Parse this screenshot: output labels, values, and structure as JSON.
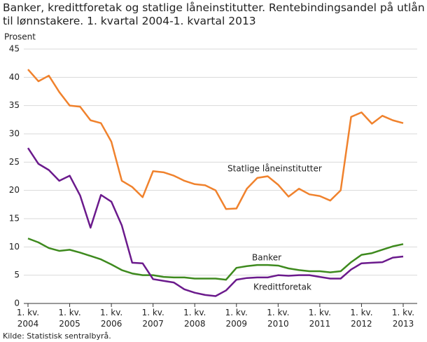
{
  "chart_data": {
    "type": "line",
    "title": "Banker, kredittforetak og statlige låneinstitutter. Rentebindingsandel på utlån til lønnstakere. 1. kvartal 2004-1. kvartal 2013",
    "y_label": "Prosent",
    "source": "Kilde: Statistisk sentralbyrå.",
    "categories": [
      "1. kv. 2004",
      null,
      null,
      null,
      "1. kv. 2005",
      null,
      null,
      null,
      "1. kv. 2006",
      null,
      null,
      null,
      "1. kv. 2007",
      null,
      null,
      null,
      "1. kv. 2008",
      null,
      null,
      null,
      "1. kv. 2009",
      null,
      null,
      null,
      "1. kv. 2010",
      null,
      null,
      null,
      "1. kv. 2011",
      null,
      null,
      null,
      "1. kv. 2012",
      null,
      null,
      null,
      "1. kv. 2013"
    ],
    "series": [
      {
        "name": "Statlige låneinstitutter",
        "color": "#f0822d",
        "values": [
          41.4,
          39.3,
          40.3,
          37.4,
          35.0,
          34.8,
          32.4,
          31.9,
          28.6,
          21.7,
          20.6,
          18.8,
          23.4,
          23.2,
          22.6,
          21.7,
          21.1,
          20.9,
          20.0,
          16.7,
          16.8,
          20.3,
          22.2,
          22.5,
          21.0,
          18.9,
          20.3,
          19.3,
          19.0,
          18.2,
          20.0,
          33.0,
          33.8,
          31.8,
          33.2,
          32.4,
          31.9
        ]
      },
      {
        "name": "Banker",
        "color": "#3e8a1e",
        "values": [
          11.5,
          10.8,
          9.8,
          9.3,
          9.5,
          9.0,
          8.4,
          7.8,
          6.9,
          5.9,
          5.3,
          5.0,
          5.0,
          4.7,
          4.6,
          4.6,
          4.4,
          4.4,
          4.4,
          4.2,
          6.3,
          6.6,
          6.8,
          6.8,
          6.7,
          6.2,
          5.9,
          5.7,
          5.7,
          5.5,
          5.7,
          7.3,
          8.6,
          8.9,
          9.5,
          10.1,
          10.5
        ]
      },
      {
        "name": "Kredittforetak",
        "color": "#6b1a8c",
        "values": [
          27.5,
          24.7,
          23.6,
          21.7,
          22.6,
          19.1,
          13.4,
          19.2,
          18.0,
          13.8,
          7.2,
          7.1,
          4.3,
          4.0,
          3.7,
          2.5,
          1.9,
          1.5,
          1.3,
          2.3,
          4.2,
          4.5,
          4.6,
          4.6,
          5.0,
          4.9,
          5.0,
          5.0,
          4.7,
          4.4,
          4.4,
          6.0,
          7.1,
          7.2,
          7.3,
          8.1,
          8.3
        ]
      }
    ],
    "ylim": [
      0,
      45
    ],
    "yticks": [
      0,
      5,
      10,
      15,
      20,
      25,
      30,
      35,
      40,
      45
    ],
    "grid": true
  }
}
